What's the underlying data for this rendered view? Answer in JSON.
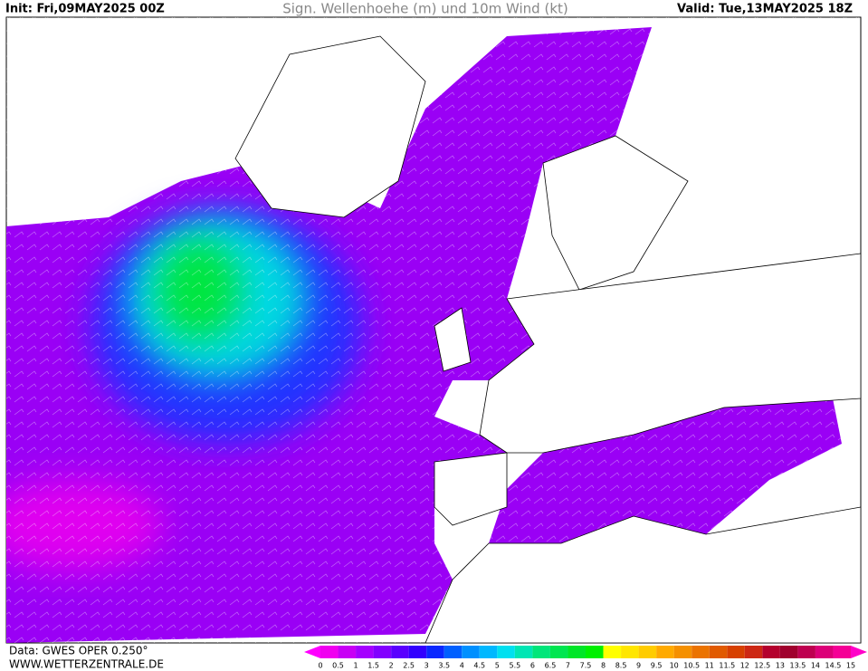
{
  "header": {
    "init": "Init: Fri,09MAY2025 00Z",
    "title": "Sign. Wellenhoehe (m) und 10m Wind (kt)",
    "valid": "Valid: Tue,13MAY2025 18Z"
  },
  "colorbar": {
    "ticks": [
      0,
      0.5,
      1,
      1.5,
      2,
      2.5,
      3,
      3.5,
      4,
      4.5,
      5,
      5.5,
      6,
      6.5,
      7,
      7.5,
      8,
      8.5,
      9,
      9.5,
      10,
      10.5,
      11,
      11.5,
      12,
      12.5,
      13,
      13.5,
      14,
      14.5,
      15
    ],
    "colors": [
      "#f000f0",
      "#c800f5",
      "#a500ff",
      "#8200ff",
      "#5a00ff",
      "#3200ff",
      "#0a28ff",
      "#0060ff",
      "#0090ff",
      "#00b8ff",
      "#00e0f0",
      "#00e6b4",
      "#00e67a",
      "#00e650",
      "#00e628",
      "#00f000",
      "#ffff00",
      "#ffe600",
      "#ffcc00",
      "#ffaa00",
      "#f59000",
      "#eb7300",
      "#e15a00",
      "#d74000",
      "#cd2814",
      "#b4002d",
      "#a0002d",
      "#be0050",
      "#dc0078",
      "#f50096"
    ],
    "under_color": "#ff00ff",
    "over_color": "#ff00c8"
  },
  "footer": {
    "data": "Data: GWES OPER 0.250°",
    "site": "WWW.WETTERZENTRALE.DE"
  }
}
